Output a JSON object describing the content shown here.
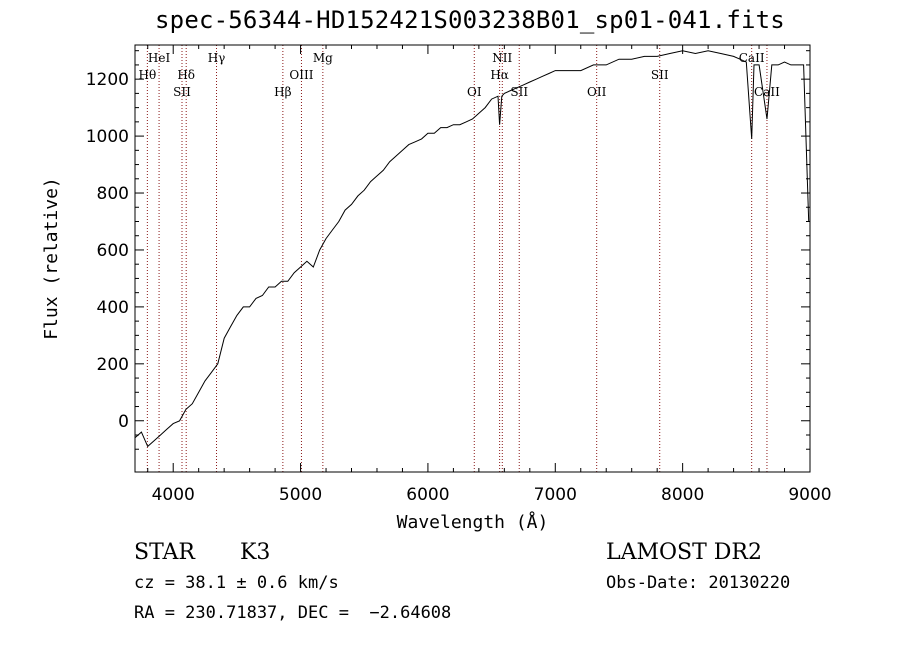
{
  "title": "spec-56344-HD152421S003238B01_sp01-041.fits",
  "chart_data": {
    "type": "line",
    "xlabel": "Wavelength (Å)",
    "ylabel": "Flux (relative)",
    "xlim": [
      3700,
      9000
    ],
    "ylim": [
      -180,
      1320
    ],
    "xticks": [
      4000,
      5000,
      6000,
      7000,
      8000,
      9000
    ],
    "yticks": [
      0,
      200,
      400,
      600,
      800,
      1000,
      1200
    ],
    "series": [
      {
        "x": [
          3700,
          3750,
          3800,
          3850,
          3900,
          3950,
          4000,
          4050,
          4100,
          4150,
          4200,
          4250,
          4300,
          4350,
          4400,
          4450,
          4500,
          4550,
          4600,
          4650,
          4700,
          4750,
          4800,
          4850,
          4900,
          4950,
          5000,
          5050,
          5100,
          5150,
          5200,
          5250,
          5300,
          5350,
          5400,
          5450,
          5500,
          5550,
          5600,
          5650,
          5700,
          5750,
          5800,
          5850,
          5900,
          5950,
          6000,
          6050,
          6100,
          6150,
          6200,
          6250,
          6300,
          6350,
          6400,
          6450,
          6500,
          6550,
          6563,
          6580,
          6600,
          6650,
          6700,
          6750,
          6800,
          6850,
          6900,
          6950,
          7000,
          7100,
          7200,
          7300,
          7400,
          7500,
          7600,
          7700,
          7800,
          7900,
          8000,
          8100,
          8200,
          8300,
          8400,
          8450,
          8500,
          8542,
          8560,
          8600,
          8662,
          8700,
          8750,
          8800,
          8850,
          8900,
          8950,
          8990
        ],
        "y": [
          -60,
          -40,
          -90,
          -70,
          -50,
          -30,
          -10,
          0,
          40,
          60,
          100,
          140,
          170,
          200,
          290,
          330,
          370,
          400,
          400,
          430,
          440,
          470,
          470,
          490,
          490,
          520,
          540,
          560,
          540,
          600,
          640,
          670,
          700,
          740,
          760,
          790,
          810,
          840,
          860,
          880,
          910,
          930,
          950,
          970,
          980,
          990,
          1010,
          1010,
          1030,
          1030,
          1040,
          1040,
          1050,
          1060,
          1080,
          1100,
          1130,
          1140,
          1040,
          1140,
          1150,
          1160,
          1170,
          1180,
          1190,
          1200,
          1210,
          1220,
          1230,
          1230,
          1230,
          1250,
          1250,
          1270,
          1270,
          1280,
          1280,
          1290,
          1300,
          1290,
          1300,
          1290,
          1280,
          1270,
          1260,
          990,
          1250,
          1250,
          1060,
          1250,
          1250,
          1260,
          1250,
          1250,
          1250,
          700
        ]
      }
    ],
    "lines": [
      {
        "label": "Hθ",
        "x": 3797,
        "row": 2
      },
      {
        "label": "HeI",
        "x": 3889,
        "row": 1
      },
      {
        "label": "SII",
        "x": 4069,
        "row": 3
      },
      {
        "label": "Hδ",
        "x": 4102,
        "row": 2
      },
      {
        "label": "Hγ",
        "x": 4340,
        "row": 1
      },
      {
        "label": "Hβ",
        "x": 4861,
        "row": 3
      },
      {
        "label": "OIII",
        "x": 5007,
        "row": 2
      },
      {
        "label": "Mg",
        "x": 5175,
        "row": 1
      },
      {
        "label": "OI",
        "x": 6364,
        "row": 3
      },
      {
        "label": "NII",
        "x": 6584,
        "row": 1
      },
      {
        "label": "Hα",
        "x": 6563,
        "row": 2
      },
      {
        "label": "SII",
        "x": 6717,
        "row": 3
      },
      {
        "label": "OII",
        "x": 7325,
        "row": 3
      },
      {
        "label": "SII",
        "x": 7820,
        "row": 2
      },
      {
        "label": "CaII",
        "x": 8542,
        "row": 1
      },
      {
        "label": "CaII",
        "x": 8662,
        "row": 3
      }
    ]
  },
  "info": {
    "class": "STAR",
    "subclass": "K3",
    "survey": "LAMOST DR2",
    "cz": "cz = 38.1 ± 0.6 km/s",
    "obsdate": "Obs-Date: 20130220",
    "radec": "RA = 230.71837, DEC =  −2.64608"
  }
}
